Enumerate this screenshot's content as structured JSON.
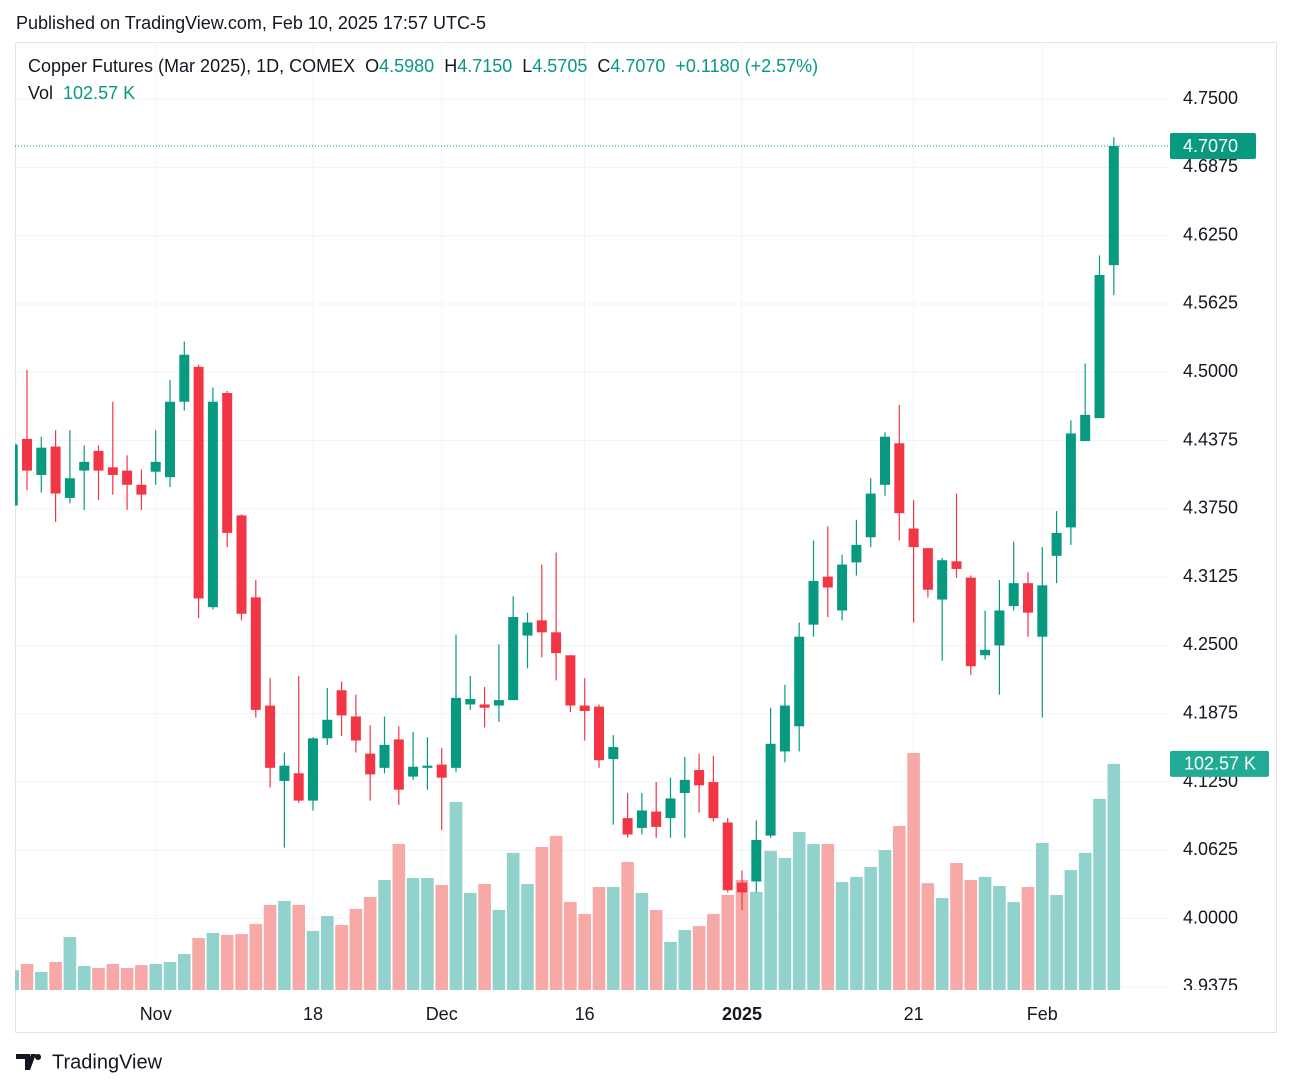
{
  "published": "Published on TradingView.com, Feb 10, 2025 17:57 UTC-5",
  "brand": "TradingView",
  "chart_data": {
    "type": "candlestick",
    "title": "Copper Futures (Mar 2025), 1D, COMEX",
    "categories": [
      null,
      null,
      null,
      null,
      null,
      null,
      null,
      null,
      null,
      null,
      "Nov",
      null,
      null,
      null,
      null,
      null,
      null,
      null,
      null,
      null,
      null,
      "18",
      null,
      null,
      null,
      null,
      null,
      null,
      null,
      null,
      "Dec",
      null,
      null,
      null,
      null,
      null,
      null,
      null,
      null,
      null,
      "16",
      null,
      null,
      null,
      null,
      null,
      null,
      null,
      null,
      null,
      null,
      "2025",
      null,
      null,
      null,
      null,
      null,
      null,
      null,
      null,
      null,
      null,
      null,
      "21",
      null,
      null,
      null,
      null,
      null,
      null,
      null,
      null,
      "Feb",
      null,
      null,
      null,
      null,
      null
    ],
    "open": [
      4.378,
      4.439,
      4.406,
      4.432,
      4.385,
      4.41,
      4.428,
      4.413,
      4.41,
      4.397,
      4.409,
      4.404,
      4.473,
      4.505,
      4.285,
      4.481,
      4.369,
      4.294,
      4.195,
      4.126,
      4.133,
      4.108,
      4.165,
      4.209,
      4.185,
      4.151,
      4.138,
      4.164,
      4.13,
      4.138,
      4.141,
      4.138,
      4.196,
      4.196,
      4.195,
      4.2,
      4.259,
      4.273,
      4.262,
      4.241,
      4.195,
      4.194,
      4.146,
      4.092,
      4.083,
      4.098,
      4.092,
      4.115,
      4.136,
      4.125,
      4.088,
      4.033,
      4.034,
      4.076,
      4.153,
      4.176,
      4.269,
      4.313,
      4.282,
      4.326,
      4.349,
      4.397,
      4.435,
      4.357,
      4.339,
      4.292,
      4.327,
      4.312,
      4.241,
      4.25,
      4.286,
      4.307,
      4.258,
      4.332,
      4.358,
      4.437,
      4.458,
      4.598
    ],
    "high": [
      4.44,
      4.502,
      4.441,
      4.447,
      4.447,
      4.433,
      4.433,
      4.473,
      4.424,
      4.411,
      4.447,
      4.493,
      4.528,
      4.507,
      4.486,
      4.483,
      4.37,
      4.31,
      4.22,
      4.152,
      4.222,
      4.166,
      4.211,
      4.217,
      4.205,
      4.177,
      4.185,
      4.176,
      4.171,
      4.166,
      4.156,
      4.26,
      4.222,
      4.212,
      4.251,
      4.295,
      4.28,
      4.324,
      4.335,
      4.241,
      4.22,
      4.196,
      4.168,
      4.115,
      4.115,
      4.125,
      4.129,
      4.148,
      4.151,
      4.149,
      4.092,
      4.044,
      4.09,
      4.193,
      4.214,
      4.271,
      4.346,
      4.359,
      4.333,
      4.365,
      4.403,
      4.445,
      4.47,
      4.383,
      4.339,
      4.33,
      4.389,
      4.314,
      4.282,
      4.31,
      4.345,
      4.317,
      4.34,
      4.373,
      4.456,
      4.508,
      4.607,
      4.715
    ],
    "low": [
      4.372,
      4.392,
      4.39,
      4.363,
      4.38,
      4.374,
      4.383,
      4.388,
      4.374,
      4.374,
      4.397,
      4.395,
      4.465,
      4.275,
      4.283,
      4.34,
      4.273,
      4.184,
      4.12,
      4.065,
      4.106,
      4.099,
      4.159,
      4.167,
      4.152,
      4.108,
      4.133,
      4.104,
      4.127,
      4.118,
      4.081,
      4.134,
      4.191,
      4.175,
      4.18,
      4.2,
      4.229,
      4.239,
      4.218,
      4.189,
      4.163,
      4.138,
      4.086,
      4.074,
      4.077,
      4.074,
      4.074,
      4.074,
      4.097,
      4.089,
      4.024,
      4.008,
      4.024,
      4.074,
      4.143,
      4.153,
      4.258,
      4.276,
      4.273,
      4.314,
      4.34,
      4.387,
      4.346,
      4.271,
      4.294,
      4.236,
      4.312,
      4.223,
      4.237,
      4.205,
      4.282,
      4.258,
      4.184,
      4.307,
      4.342,
      4.437,
      4.458,
      4.5705
    ],
    "close": [
      4.434,
      4.41,
      4.431,
      4.389,
      4.403,
      4.418,
      4.41,
      4.406,
      4.397,
      4.388,
      4.418,
      4.473,
      4.516,
      4.293,
      4.473,
      4.353,
      4.279,
      4.191,
      4.138,
      4.14,
      4.108,
      4.165,
      4.182,
      4.186,
      4.163,
      4.132,
      4.159,
      4.118,
      4.139,
      4.14,
      4.129,
      4.202,
      4.201,
      4.193,
      4.2,
      4.276,
      4.271,
      4.262,
      4.243,
      4.195,
      4.19,
      4.145,
      4.157,
      4.077,
      4.099,
      4.084,
      4.11,
      4.127,
      4.122,
      4.092,
      4.026,
      4.024,
      4.072,
      4.16,
      4.195,
      4.258,
      4.309,
      4.303,
      4.324,
      4.342,
      4.389,
      4.441,
      4.371,
      4.34,
      4.301,
      4.328,
      4.32,
      4.231,
      4.246,
      4.282,
      4.307,
      4.28,
      4.305,
      4.353,
      4.444,
      4.461,
      4.589,
      4.707
    ],
    "up_color": "#089981",
    "down_color": "#f23645",
    "ylim": [
      3.9347,
      4.8022
    ],
    "yticks": [
      {
        "value": 4.75,
        "label": "4.7500"
      },
      {
        "value": 4.6875,
        "label": "4.6875"
      },
      {
        "value": 4.625,
        "label": "4.6250"
      },
      {
        "value": 4.5625,
        "label": "4.5625"
      },
      {
        "value": 4.5,
        "label": "4.5000"
      },
      {
        "value": 4.4375,
        "label": "4.4375"
      },
      {
        "value": 4.375,
        "label": "4.3750"
      },
      {
        "value": 4.3125,
        "label": "4.3125"
      },
      {
        "value": 4.25,
        "label": "4.2500"
      },
      {
        "value": 4.1875,
        "label": "4.1875"
      },
      {
        "value": 4.125,
        "label": "4.1250"
      },
      {
        "value": 4.0625,
        "label": "4.0625"
      },
      {
        "value": 4.0,
        "label": "4.0000"
      },
      {
        "value": 3.9375,
        "label": "3.9375"
      }
    ],
    "grid": true,
    "legend": {
      "open": {
        "key": "O",
        "label": "4.5980"
      },
      "high": {
        "key": "H",
        "label": "4.7150"
      },
      "low": {
        "key": "L",
        "label": "4.5705"
      },
      "close": {
        "key": "C",
        "label": "4.7070"
      },
      "change": "+0.1180 (+2.57%)"
    },
    "volume": {
      "name": "Vol",
      "values": [
        9,
        11.8,
        8.2,
        12.7,
        24,
        10.9,
        10,
        11.8,
        10,
        11.3,
        11.8,
        12.7,
        16.3,
        23.6,
        25.9,
        25,
        25.4,
        29.9,
        38.6,
        40.4,
        38.6,
        26.8,
        33.6,
        29.5,
        36.8,
        42.2,
        49.9,
        66.2,
        50.8,
        50.8,
        47.6,
        85.3,
        44,
        48.1,
        36.3,
        62.2,
        48.1,
        64.9,
        69.9,
        39.9,
        34.5,
        46.7,
        46.7,
        58.1,
        44,
        36.3,
        21.8,
        27.2,
        29,
        34.5,
        43.1,
        49.9,
        44.5,
        63.1,
        59.9,
        71.7,
        66.2,
        66.2,
        49,
        51.3,
        55.8,
        63.5,
        74.4,
        107.5,
        48.5,
        41.7,
        57.6,
        49.9,
        51.3,
        47.2,
        39.9,
        46.7,
        66.7,
        43.1,
        54.4,
        62.2,
        86.7,
        102.57
      ],
      "last_label": "102.57 K",
      "ylim": [
        0,
        430
      ],
      "up_color": "#92d2cc",
      "down_color": "#f7a9a7",
      "tag_color": "#22ab94"
    }
  }
}
